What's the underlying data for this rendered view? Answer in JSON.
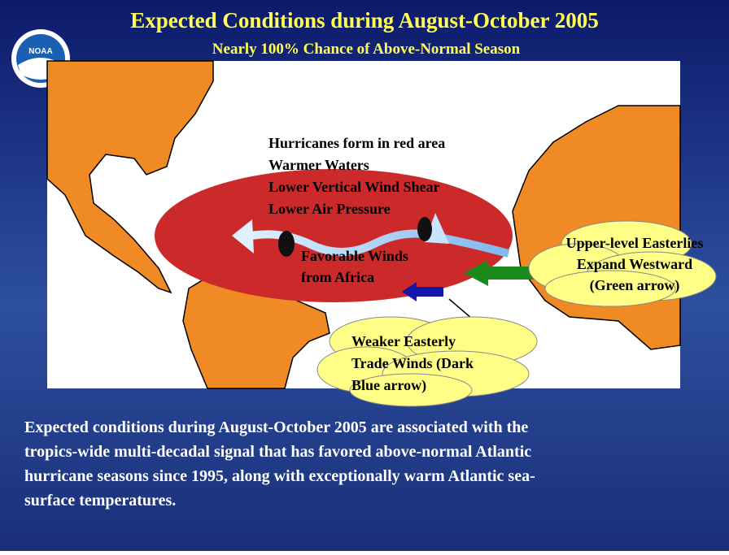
{
  "header": {
    "logo": "NOAA",
    "title": "Expected Conditions during August-October 2005",
    "subtitle": "Nearly 100% Chance of Above-Normal Season"
  },
  "map": {
    "red_area_lines": [
      "Hurricanes form in red area",
      "Warmer Waters",
      "Lower Vertical Wind Shear",
      "Lower Air Pressure"
    ],
    "winds_lines": [
      "Favorable Winds",
      "from Africa"
    ],
    "upper_callout": [
      "Upper-level  Easterlies",
      "Expand Westward",
      "(Green arrow)"
    ],
    "trade_callout": [
      "Weaker Easterly",
      "Trade Winds (Dark",
      "Blue arrow)"
    ]
  },
  "caption": [
    "Expected conditions during August-October 2005 are associated with the",
    "tropics-wide multi-decadal signal that has favored above-normal Atlantic",
    "hurricane seasons since 1995, along with exceptionally warm Atlantic sea-",
    "surface temperatures."
  ]
}
